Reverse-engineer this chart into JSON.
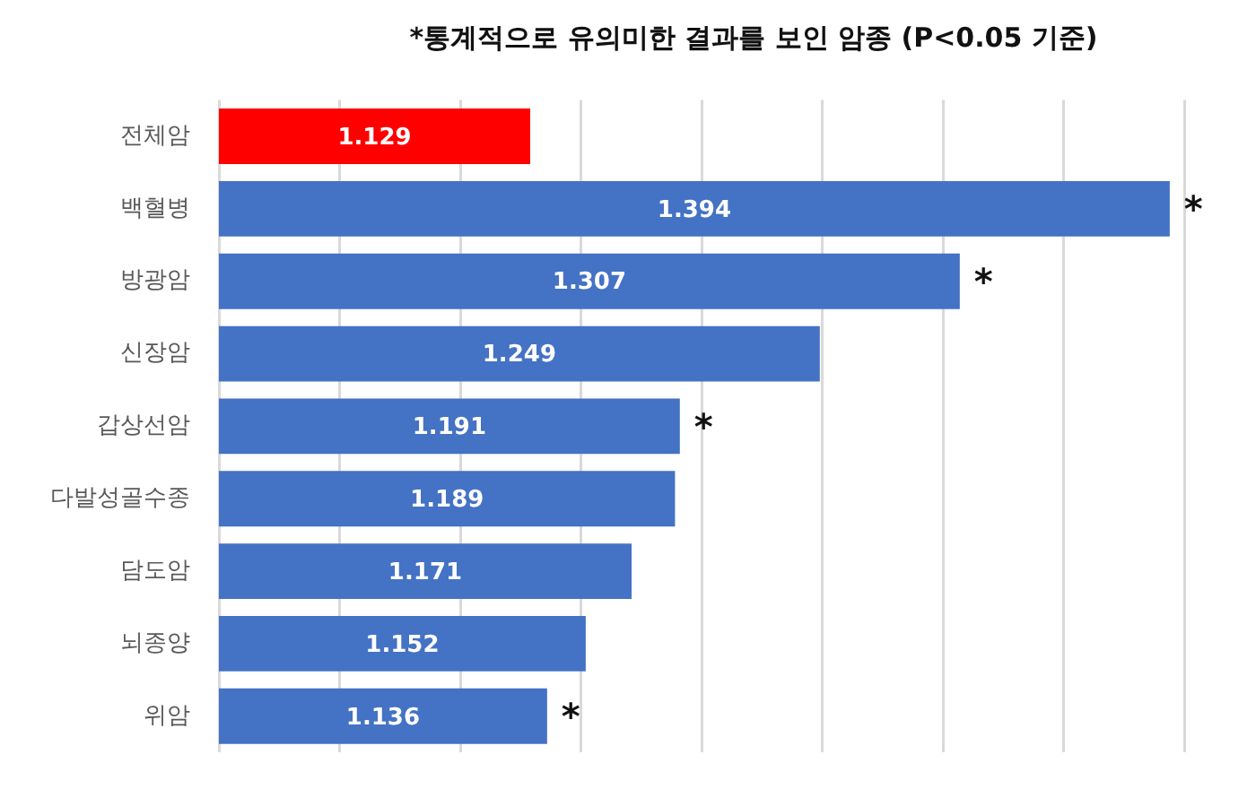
{
  "chart_data": {
    "type": "bar",
    "orientation": "horizontal",
    "title": "*통계적으로 유의미한 결과를 보인 암종 (P<0.05 기준)",
    "categories": [
      "전체암",
      "백혈병",
      "방광암",
      "신장암",
      "갑상선암",
      "다발성골수종",
      "담도암",
      "뇌종양",
      "위암"
    ],
    "values": [
      1.129,
      1.394,
      1.307,
      1.249,
      1.191,
      1.189,
      1.171,
      1.152,
      1.136
    ],
    "colors": [
      "#ff0000",
      "#4472c4",
      "#4472c4",
      "#4472c4",
      "#4472c4",
      "#4472c4",
      "#4472c4",
      "#4472c4",
      "#4472c4"
    ],
    "xlim": [
      1.0,
      1.4
    ],
    "xticks": [
      {
        "value": 1.0,
        "label": null
      },
      {
        "value": 1.05,
        "label": null
      },
      {
        "value": 1.1,
        "label": null
      },
      {
        "value": 1.15,
        "label": null
      },
      {
        "value": 1.2,
        "label": null
      },
      {
        "value": 1.25,
        "label": null
      },
      {
        "value": 1.3,
        "label": null
      },
      {
        "value": 1.35,
        "label": null
      },
      {
        "value": 1.4,
        "label": null
      }
    ],
    "grid": "x",
    "legend": false,
    "data_labels": true,
    "annotations": [
      {
        "text": "*",
        "x": 1.394,
        "y": "백혈병"
      },
      {
        "text": "*",
        "x": 1.307,
        "y": "방광암"
      },
      {
        "text": "*",
        "x": 1.191,
        "y": "갑상선암"
      },
      {
        "text": "*",
        "x": 1.136,
        "y": "위암"
      }
    ]
  }
}
